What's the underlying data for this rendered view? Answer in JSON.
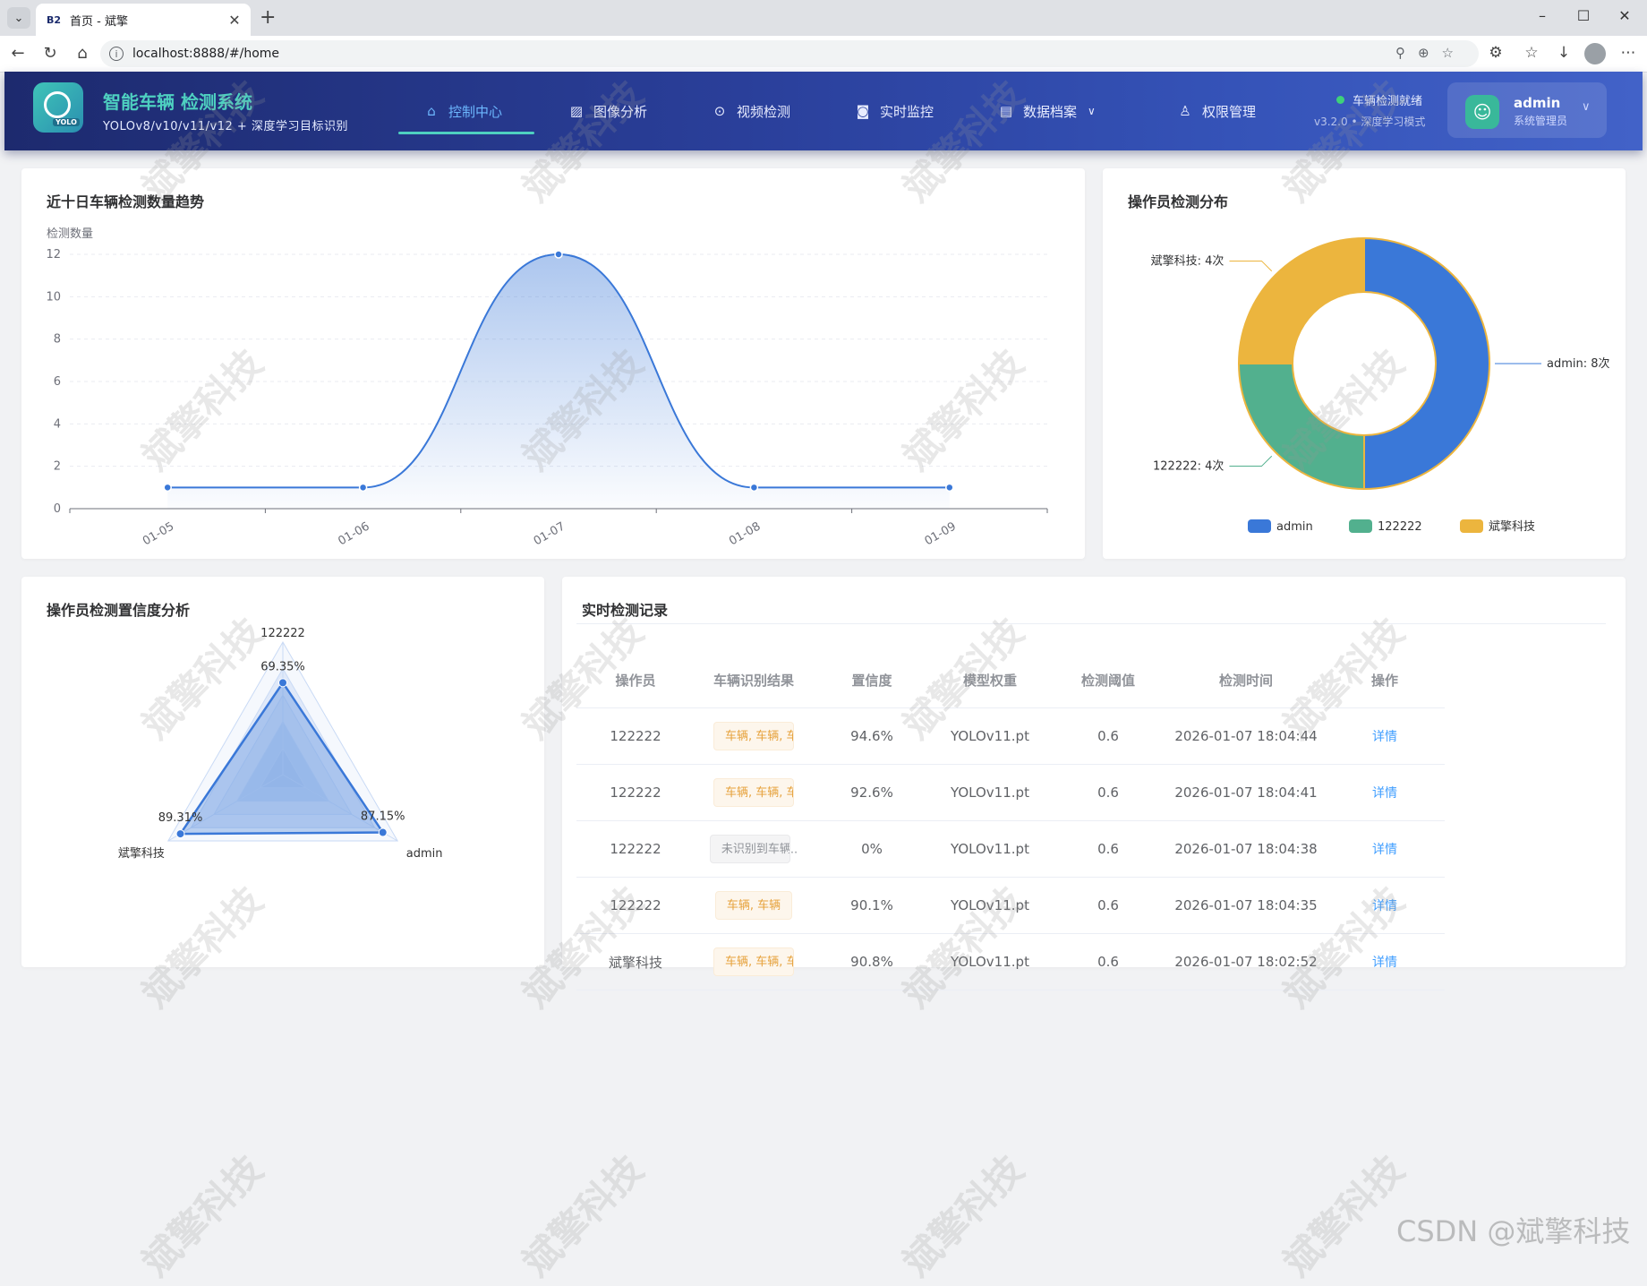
{
  "browser": {
    "tab_title": "首页 - 斌擎",
    "tab_favicon": "B2",
    "url": "localhost:8888/#/home"
  },
  "header": {
    "title": "智能车辆 检测系统",
    "subtitle": "YOLOv8/v10/v11/v12 + 深度学习目标识别",
    "logo_tag": "YOLO",
    "menu": [
      {
        "label": "控制中心",
        "icon": "home-icon",
        "active": true
      },
      {
        "label": "图像分析",
        "icon": "image-icon"
      },
      {
        "label": "视频检测",
        "icon": "play-icon"
      },
      {
        "label": "实时监控",
        "icon": "camera-icon"
      },
      {
        "label": "数据档案",
        "icon": "document-icon"
      },
      {
        "label": "权限管理",
        "icon": "user-icon"
      }
    ],
    "status_text": "车辆检测就绪",
    "status_version": "v3.2.0 • 深度学习模式",
    "user_name": "admin",
    "user_role": "系统管理员"
  },
  "colors": {
    "primary": "#3a78d8",
    "green": "#52b08e",
    "yellow": "#ecb53e",
    "link": "#409eff"
  },
  "trend_card": {
    "title": "近十日车辆检测数量趋势",
    "chart_data": {
      "type": "area",
      "ylabel": "检测数量",
      "categories": [
        "01-05",
        "01-06",
        "01-07",
        "01-08",
        "01-09"
      ],
      "values": [
        1,
        1,
        12,
        1,
        1
      ],
      "ylim": [
        0,
        12
      ],
      "yticks": [
        "0",
        "2",
        "4",
        "6",
        "8",
        "10",
        "12"
      ],
      "grid": true
    }
  },
  "pie_card": {
    "title": "操作员检测分布",
    "chart_data": {
      "type": "pie",
      "labels": [
        "admin",
        "122222",
        "斌擎科技"
      ],
      "values": [
        8,
        4,
        4
      ],
      "slice_labels": [
        "admin: 8次",
        "122222: 4次",
        "斌擎科技: 4次"
      ],
      "legend": "bottom"
    }
  },
  "radar_card": {
    "title": "操作员检测置信度分析",
    "chart_data": {
      "type": "radar",
      "indicators": [
        "122222",
        "admin",
        "斌擎科技"
      ],
      "values": [
        69.35,
        87.15,
        89.31
      ],
      "value_labels": [
        "69.35%",
        "87.15%",
        "89.31%"
      ]
    }
  },
  "records_card": {
    "title": "实时检测记录",
    "columns": [
      "操作员",
      "车辆识别结果",
      "置信度",
      "模型权重",
      "检测阈值",
      "检测时间",
      "操作"
    ],
    "rows": [
      {
        "operator": "122222",
        "result": "车辆, 车辆, 车辆, 车辆",
        "result_type": "warn",
        "overflow": "",
        "confidence": "94.6%",
        "model": "YOLOv11.pt",
        "threshold": "0.6",
        "time": "2026-01-07 18:04:44",
        "action": "详情"
      },
      {
        "operator": "122222",
        "result": "车辆, 车辆, 车辆",
        "result_type": "warn",
        "overflow": "",
        "confidence": "92.6%",
        "model": "YOLOv11.pt",
        "threshold": "0.6",
        "time": "2026-01-07 18:04:41",
        "action": "详情"
      },
      {
        "operator": "122222",
        "result": "未识别到车辆",
        "result_type": "info",
        "overflow": "..",
        "confidence": "0%",
        "model": "YOLOv11.pt",
        "threshold": "0.6",
        "time": "2026-01-07 18:04:38",
        "action": "详情"
      },
      {
        "operator": "122222",
        "result": "车辆, 车辆",
        "result_type": "warn",
        "overflow": "",
        "confidence": "90.1%",
        "model": "YOLOv11.pt",
        "threshold": "0.6",
        "time": "2026-01-07 18:04:35",
        "action": "详情"
      },
      {
        "operator": "斌擎科技",
        "result": "车辆, 车辆, 车辆, 车辆",
        "result_type": "warn",
        "overflow": "",
        "confidence": "90.8%",
        "model": "YOLOv11.pt",
        "threshold": "0.6",
        "time": "2026-01-07 18:02:52",
        "action": "详情"
      }
    ]
  },
  "watermark": "斌擎科技",
  "csdn_watermark": "CSDN @斌擎科技"
}
